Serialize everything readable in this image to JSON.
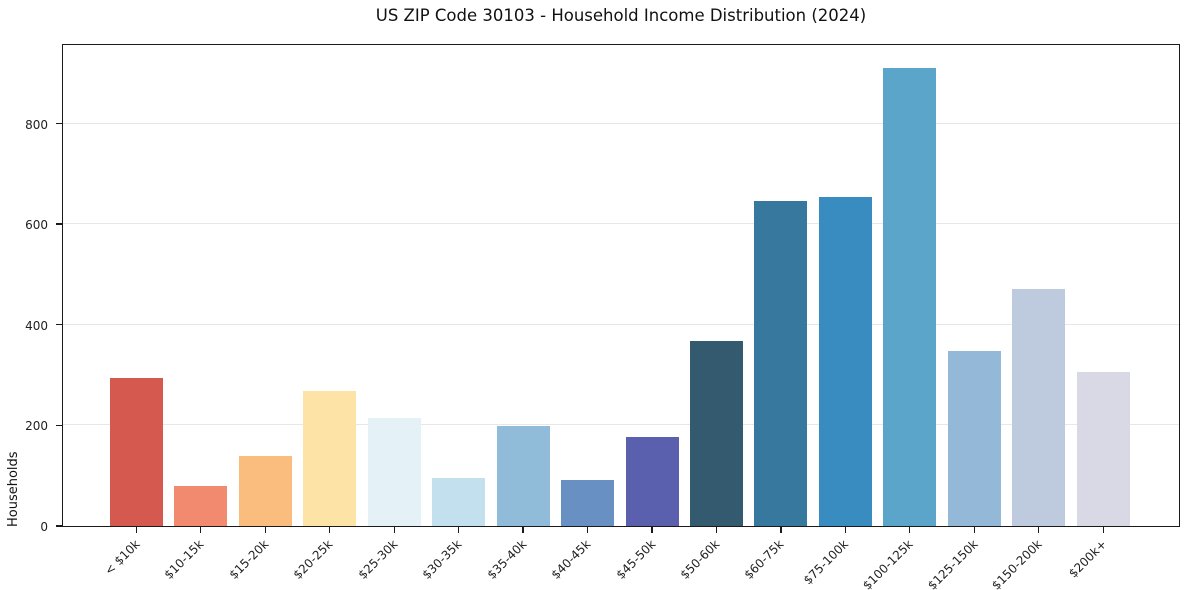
{
  "figure": {
    "title": "US ZIP Code 30103 - Household Income Distribution (2024)",
    "ylabel": "Households"
  },
  "chart_data": {
    "type": "bar",
    "title": "US ZIP Code 30103 - Household Income Distribution (2024)",
    "xlabel": "",
    "ylabel": "Households",
    "categories": [
      "< $10k",
      "$10-15k",
      "$15-20k",
      "$20-25k",
      "$25-30k",
      "$30-35k",
      "$35-40k",
      "$40-45k",
      "$45-50k",
      "$50-60k",
      "$60-75k",
      "$75-100k",
      "$100-125k",
      "$125-150k",
      "$150-200k",
      "$200k+"
    ],
    "values": [
      295,
      80,
      139,
      268,
      214,
      96,
      198,
      91,
      176,
      368,
      646,
      654,
      910,
      347,
      472,
      307
    ],
    "bar_colors": [
      "#d6594f",
      "#f18a6e",
      "#fbbd7e",
      "#fde3a6",
      "#e4f1f7",
      "#c2e0ed",
      "#90bcd9",
      "#6990c2",
      "#5a5fae",
      "#345a70",
      "#37789f",
      "#388cc0",
      "#5ca5ca",
      "#94b8d7",
      "#becade",
      "#d8d9e4"
    ],
    "yticks": [
      0,
      200,
      400,
      600,
      800
    ],
    "ylim": [
      0,
      960
    ],
    "grid": "horizontal-only",
    "gridline_color": "#e7e7e7",
    "legend": "none",
    "background_color": "#ffffff",
    "xtick_rotation_deg": 45
  }
}
